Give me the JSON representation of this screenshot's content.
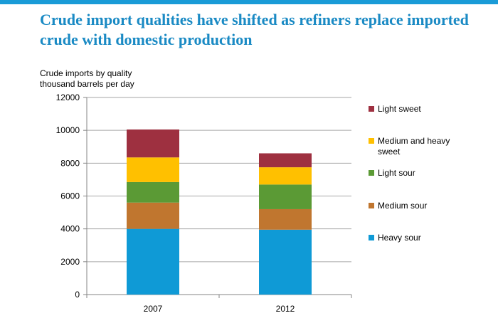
{
  "title": "Crude import qualities have shifted as refiners replace imported crude with domestic production",
  "caption_line1": "Crude imports by quality",
  "caption_line2": "thousand barrels per day",
  "chart_data": {
    "type": "bar",
    "stacked": true,
    "categories": [
      "2007",
      "2012"
    ],
    "series": [
      {
        "name": "Heavy sour",
        "color": "#0f9ad6",
        "values": [
          4000,
          3950
        ]
      },
      {
        "name": "Medium sour",
        "color": "#c0762f",
        "values": [
          1600,
          1250
        ]
      },
      {
        "name": "Light sour",
        "color": "#5b9a35",
        "values": [
          1250,
          1500
        ]
      },
      {
        "name": "Medium and heavy sweet",
        "color": "#ffc000",
        "values": [
          1500,
          1050
        ]
      },
      {
        "name": "Light sweet",
        "color": "#9e3040",
        "values": [
          1700,
          850
        ]
      }
    ],
    "ylim": [
      0,
      12000
    ],
    "yticks": [
      "0",
      "2000",
      "4000",
      "6000",
      "8000",
      "10000",
      "12000"
    ],
    "grid": true,
    "legend_position": "right"
  }
}
